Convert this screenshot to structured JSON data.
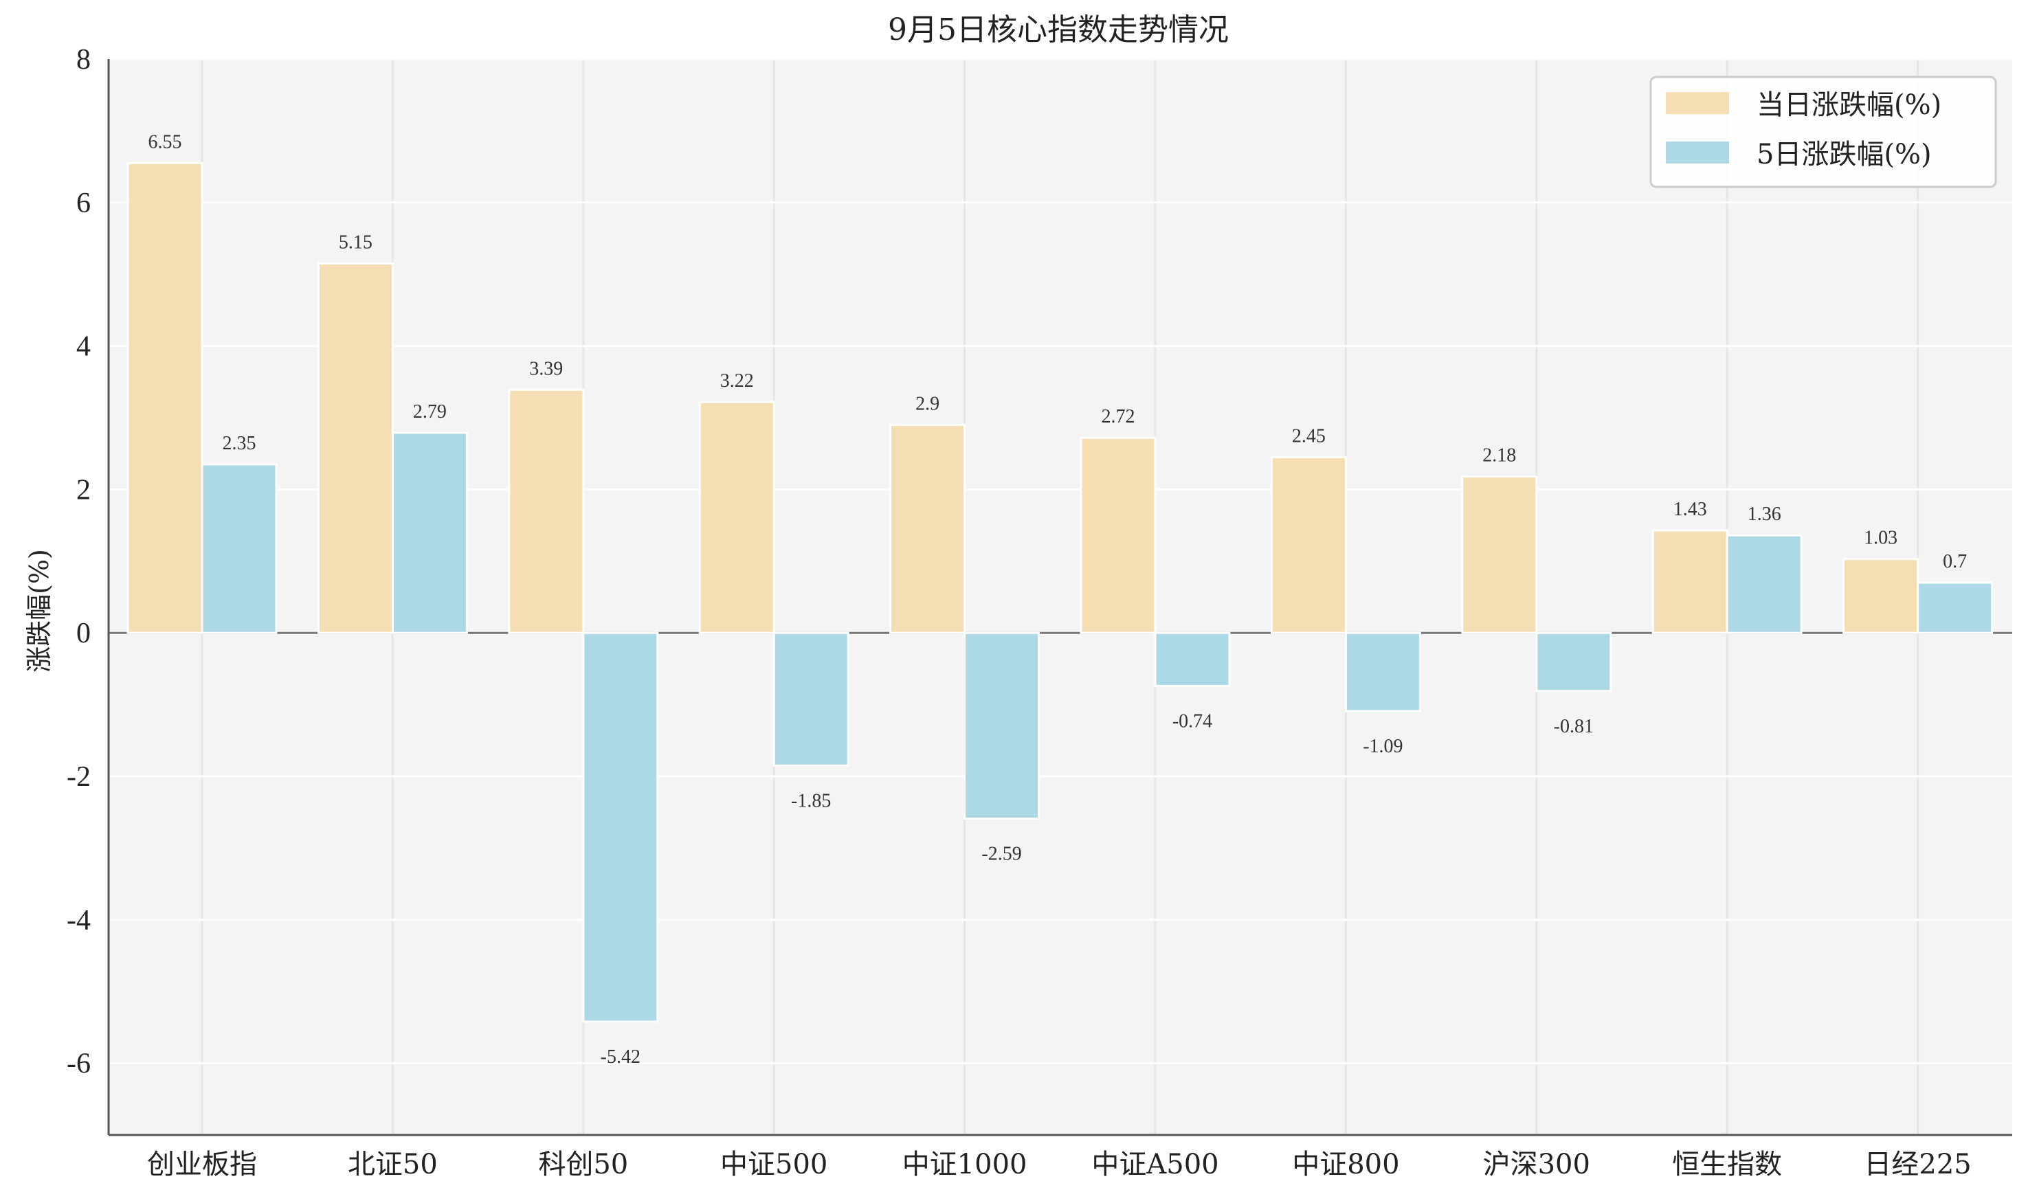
{
  "chart_data": {
    "type": "bar",
    "title": "9月5日核心指数走势情况",
    "xlabel": "",
    "ylabel": "涨跌幅(%)",
    "ylim": [
      -7,
      8
    ],
    "yticks": [
      8,
      6,
      4,
      2,
      0,
      -2,
      -4,
      -6
    ],
    "ytick_labels": [
      "8",
      "6",
      "4",
      "2",
      "0",
      "-2",
      "-4",
      "-6"
    ],
    "grid": true,
    "legend_position": "top-right",
    "categories": [
      "创业板指",
      "北证50",
      "科创50",
      "中证500",
      "中证1000",
      "中证A500",
      "中证800",
      "沪深300",
      "恒生指数",
      "日经225"
    ],
    "series": [
      {
        "name": "当日涨跌幅(%)",
        "color": "#F5DEB3",
        "values": [
          6.55,
          5.15,
          3.39,
          3.22,
          2.9,
          2.72,
          2.45,
          2.18,
          1.43,
          1.03
        ],
        "labels": [
          "6.55",
          "5.15",
          "3.39",
          "3.22",
          "2.9",
          "2.72",
          "2.45",
          "2.18",
          "1.43",
          "1.03"
        ]
      },
      {
        "name": "5日涨跌幅(%)",
        "color": "#ADD8E6",
        "values": [
          2.35,
          2.79,
          -5.42,
          -1.85,
          -2.59,
          -0.74,
          -1.09,
          -0.81,
          1.36,
          0.7
        ],
        "labels": [
          "2.35",
          "2.79",
          "-5.42",
          "-1.85",
          "-2.59",
          "-0.74",
          "-1.09",
          "-0.81",
          "1.36",
          "0.7"
        ]
      }
    ],
    "colors": {
      "plot_background": "#F4F4F4",
      "grid": "#FFFFFF",
      "axis": "#555555",
      "zero_line": "#777777"
    }
  }
}
